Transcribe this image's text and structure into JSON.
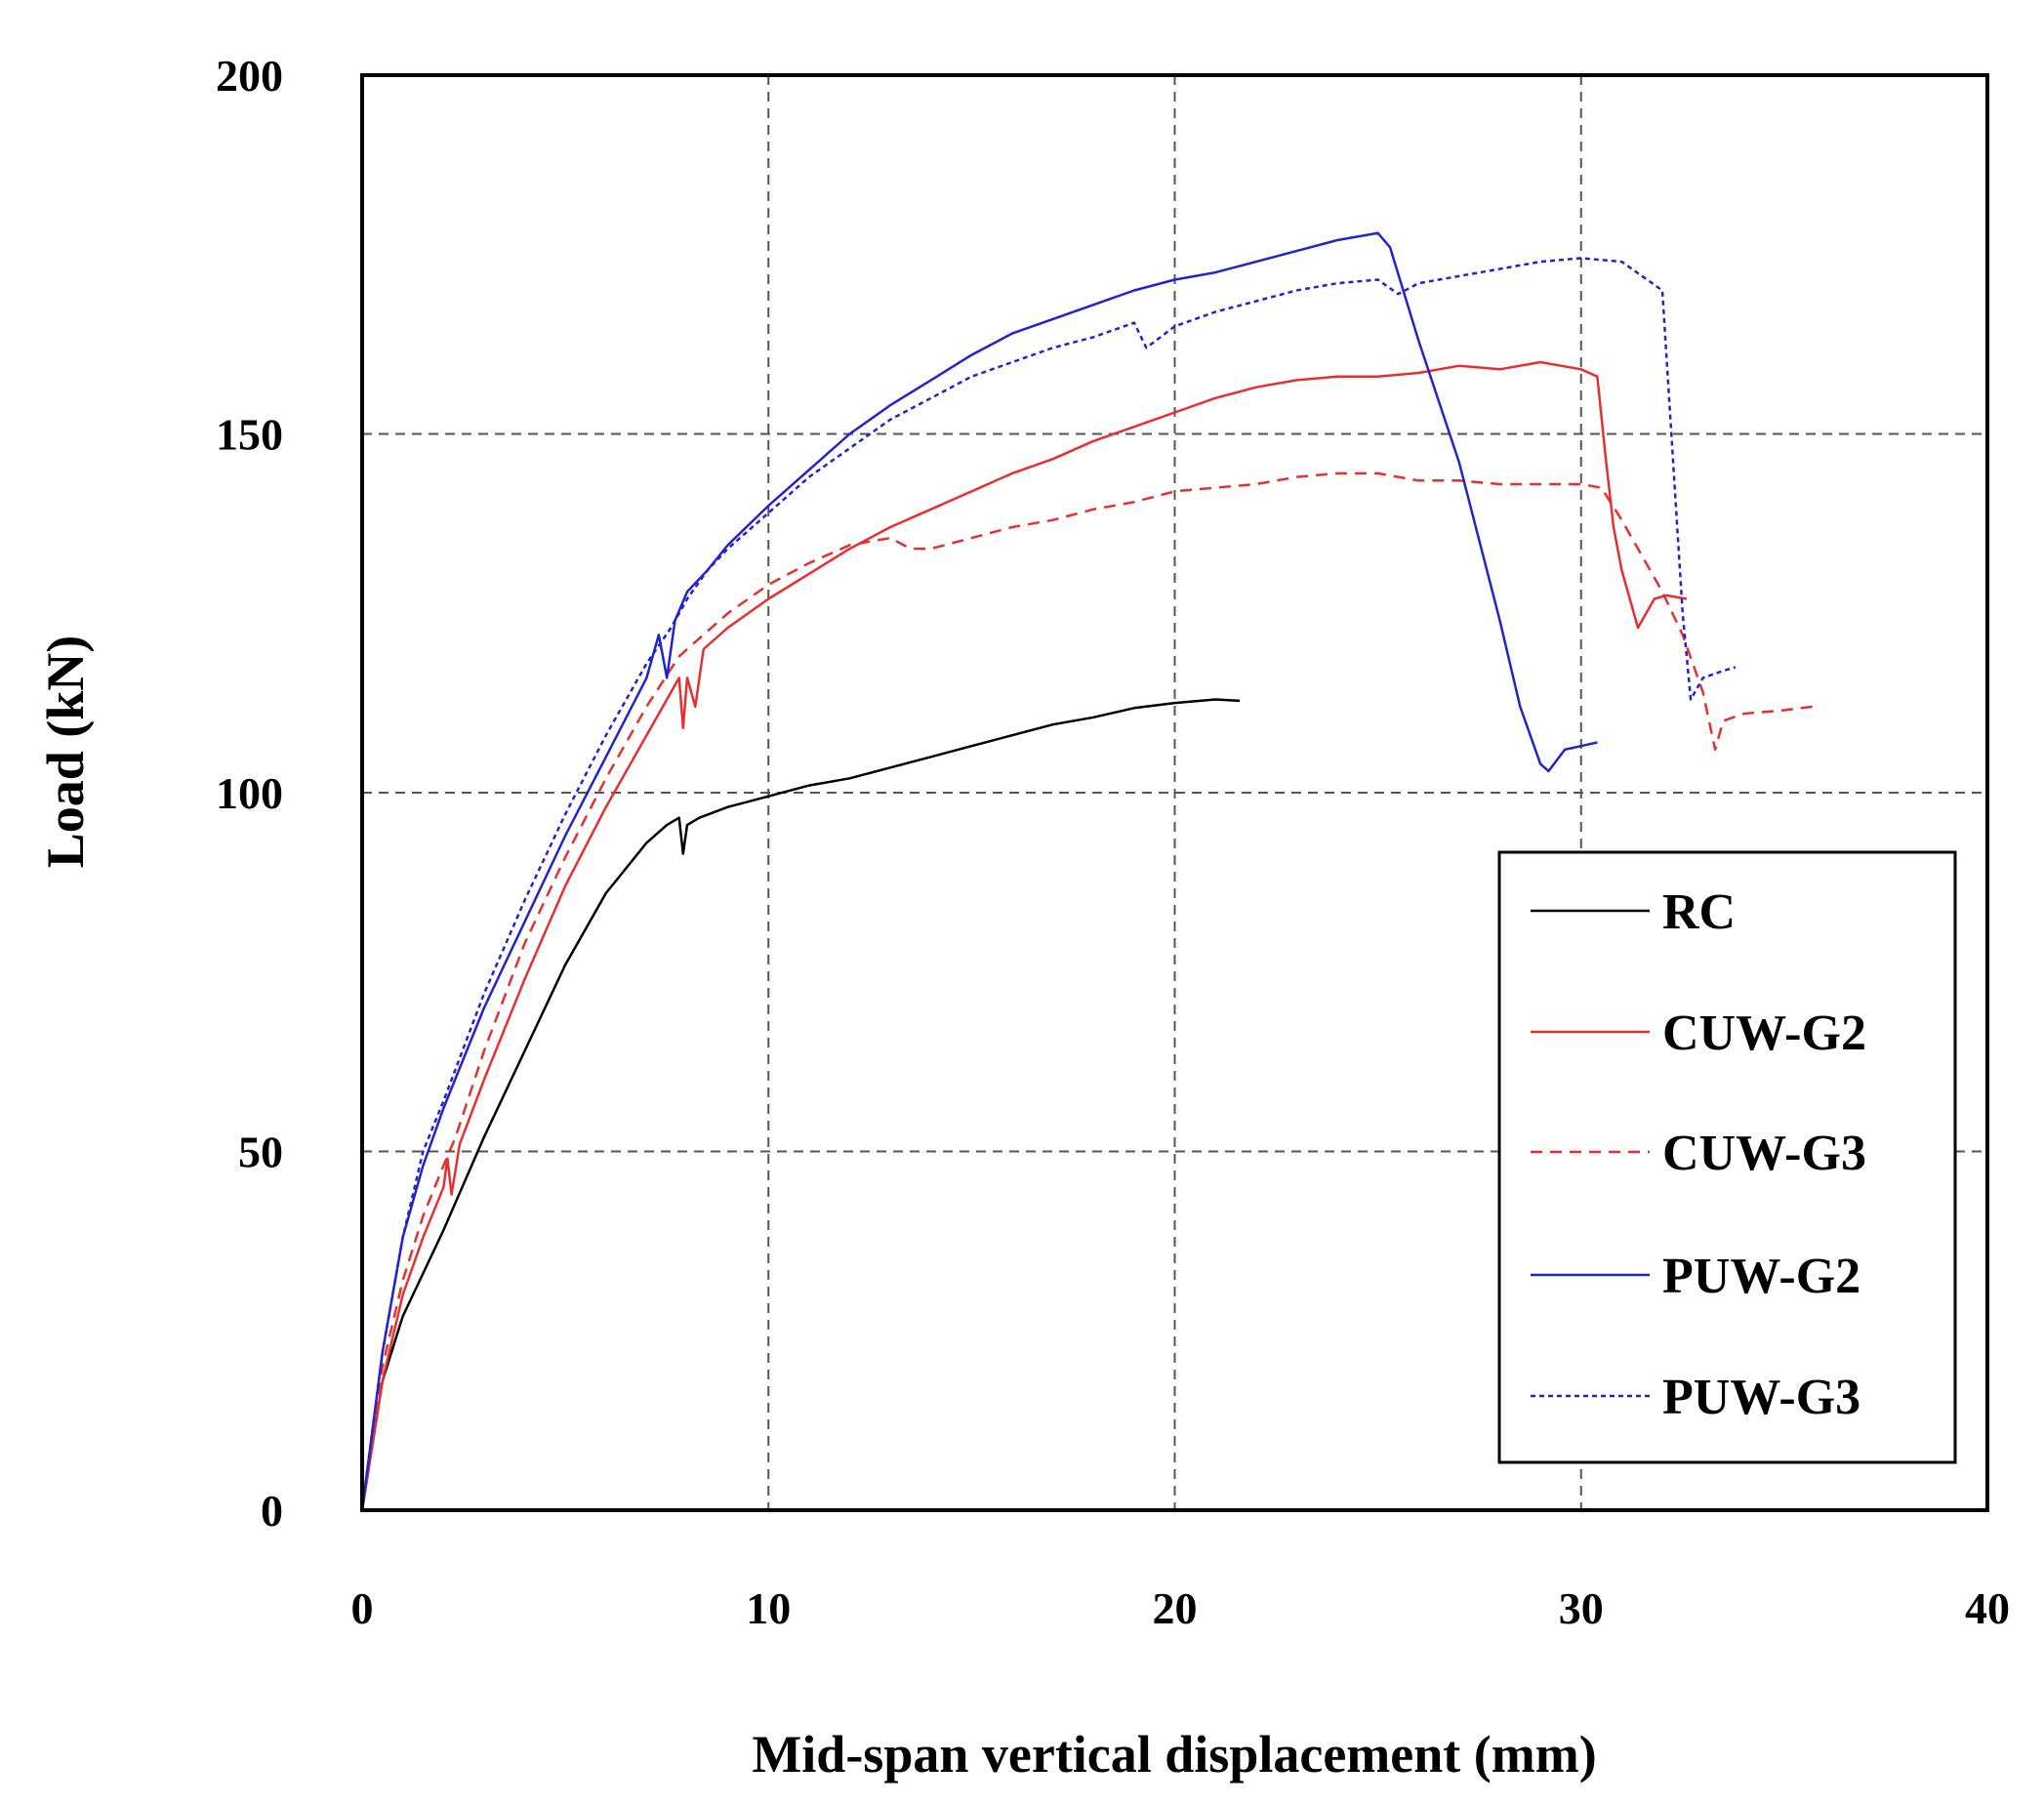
{
  "chart_data": {
    "type": "line",
    "title": "",
    "xlabel": "Mid-span vertical displacement (mm)",
    "ylabel": "Load (kN)",
    "xlim": [
      0,
      40
    ],
    "ylim": [
      0,
      200
    ],
    "xticks": [
      0,
      10,
      20,
      30,
      40
    ],
    "yticks": [
      0,
      50,
      100,
      150,
      200
    ],
    "grid": true,
    "legend_position": "bottom-right",
    "series": [
      {
        "name": "RC",
        "color": "#000000",
        "dash": "solid",
        "points": [
          [
            0,
            0
          ],
          [
            0.5,
            18
          ],
          [
            1.0,
            27
          ],
          [
            1.5,
            33
          ],
          [
            2.0,
            39
          ],
          [
            3,
            52
          ],
          [
            4,
            64
          ],
          [
            5,
            76
          ],
          [
            6,
            86
          ],
          [
            7,
            93
          ],
          [
            7.5,
            95.5
          ],
          [
            7.8,
            96.5
          ],
          [
            7.9,
            91.5
          ],
          [
            8.0,
            95.5
          ],
          [
            8.3,
            96.5
          ],
          [
            9,
            98
          ],
          [
            10,
            99.5
          ],
          [
            11,
            101
          ],
          [
            12,
            102
          ],
          [
            13,
            103.5
          ],
          [
            14,
            105
          ],
          [
            15,
            106.5
          ],
          [
            16,
            108
          ],
          [
            17,
            109.5
          ],
          [
            18,
            110.5
          ],
          [
            19,
            111.8
          ],
          [
            20,
            112.5
          ],
          [
            21,
            113
          ],
          [
            21.6,
            112.8
          ]
        ]
      },
      {
        "name": "CUW-G2",
        "color": "#e53030",
        "dash": "solid",
        "points": [
          [
            0,
            0
          ],
          [
            0.5,
            18
          ],
          [
            1.0,
            30
          ],
          [
            1.5,
            38
          ],
          [
            2.0,
            45
          ],
          [
            2.1,
            49
          ],
          [
            2.2,
            44
          ],
          [
            2.4,
            51
          ],
          [
            3,
            60
          ],
          [
            4,
            74
          ],
          [
            5,
            87
          ],
          [
            6,
            98
          ],
          [
            7,
            108
          ],
          [
            7.5,
            113
          ],
          [
            7.8,
            116
          ],
          [
            7.9,
            109
          ],
          [
            8.0,
            116
          ],
          [
            8.2,
            112
          ],
          [
            8.4,
            120
          ],
          [
            9,
            123
          ],
          [
            10,
            127
          ],
          [
            11,
            130.5
          ],
          [
            12,
            134
          ],
          [
            13,
            137
          ],
          [
            14,
            139.5
          ],
          [
            15,
            142
          ],
          [
            16,
            144.5
          ],
          [
            17,
            146.5
          ],
          [
            18,
            149
          ],
          [
            19,
            151
          ],
          [
            20,
            153
          ],
          [
            21,
            155
          ],
          [
            22,
            156.5
          ],
          [
            23,
            157.5
          ],
          [
            24,
            158
          ],
          [
            25,
            158
          ],
          [
            26,
            158.5
          ],
          [
            27,
            159.5
          ],
          [
            28,
            159
          ],
          [
            29,
            160
          ],
          [
            30,
            159
          ],
          [
            30.4,
            158
          ],
          [
            30.6,
            147
          ],
          [
            30.8,
            137
          ],
          [
            31.0,
            131
          ],
          [
            31.2,
            127
          ],
          [
            31.4,
            123
          ],
          [
            31.6,
            125
          ],
          [
            31.8,
            127
          ],
          [
            32.1,
            127.5
          ],
          [
            32.6,
            127
          ]
        ]
      },
      {
        "name": "CUW-G3",
        "color": "#e53030",
        "dash": "dashed",
        "points": [
          [
            0,
            0
          ],
          [
            0.5,
            20
          ],
          [
            1.0,
            32
          ],
          [
            1.5,
            41
          ],
          [
            2.0,
            48
          ],
          [
            2.3,
            52
          ],
          [
            3,
            64
          ],
          [
            4,
            79
          ],
          [
            5,
            91
          ],
          [
            6,
            102
          ],
          [
            7,
            112
          ],
          [
            7.8,
            119
          ],
          [
            8.2,
            121
          ],
          [
            9,
            125
          ],
          [
            10,
            129
          ],
          [
            11,
            132
          ],
          [
            12,
            134.5
          ],
          [
            13,
            135.5
          ],
          [
            13.5,
            134
          ],
          [
            14,
            134
          ],
          [
            15,
            135.5
          ],
          [
            16,
            137
          ],
          [
            17,
            138
          ],
          [
            18,
            139.5
          ],
          [
            19,
            140.5
          ],
          [
            20,
            142
          ],
          [
            21,
            142.5
          ],
          [
            22,
            143
          ],
          [
            23,
            144
          ],
          [
            24,
            144.5
          ],
          [
            25,
            144.5
          ],
          [
            26,
            143.5
          ],
          [
            27,
            143.5
          ],
          [
            28,
            143
          ],
          [
            29,
            143
          ],
          [
            30,
            143
          ],
          [
            30.5,
            142.5
          ],
          [
            31,
            138
          ],
          [
            32,
            128
          ],
          [
            32.5,
            122
          ],
          [
            33,
            114
          ],
          [
            33.3,
            106
          ],
          [
            33.5,
            110
          ],
          [
            34,
            111
          ],
          [
            35,
            111.5
          ],
          [
            35.7,
            112
          ]
        ]
      },
      {
        "name": "PUW-G2",
        "color": "#2323cc",
        "dash": "solid",
        "points": [
          [
            0,
            0
          ],
          [
            0.5,
            22
          ],
          [
            1.0,
            38
          ],
          [
            1.5,
            48
          ],
          [
            2.0,
            56
          ],
          [
            3,
            70
          ],
          [
            4,
            82
          ],
          [
            5,
            94
          ],
          [
            6,
            105
          ],
          [
            7,
            116
          ],
          [
            7.3,
            122
          ],
          [
            7.5,
            116
          ],
          [
            7.7,
            124
          ],
          [
            8,
            128
          ],
          [
            8.5,
            131
          ],
          [
            9,
            134.5
          ],
          [
            10,
            140
          ],
          [
            11,
            145
          ],
          [
            12,
            150
          ],
          [
            13,
            154
          ],
          [
            14,
            157.5
          ],
          [
            15,
            161
          ],
          [
            16,
            164
          ],
          [
            17,
            166
          ],
          [
            18,
            168
          ],
          [
            19,
            170
          ],
          [
            20,
            171.5
          ],
          [
            21,
            172.5
          ],
          [
            22,
            174
          ],
          [
            23,
            175.5
          ],
          [
            24,
            177
          ],
          [
            24.5,
            177.5
          ],
          [
            25,
            178
          ],
          [
            25.3,
            176
          ],
          [
            26,
            163
          ],
          [
            27,
            146
          ],
          [
            28,
            124
          ],
          [
            28.5,
            112
          ],
          [
            29,
            104
          ],
          [
            29.2,
            103
          ],
          [
            29.6,
            106
          ],
          [
            30,
            106.5
          ],
          [
            30.4,
            107
          ]
        ]
      },
      {
        "name": "PUW-G3",
        "color": "#2323cc",
        "dash": "dotted",
        "points": [
          [
            0,
            0
          ],
          [
            0.5,
            22
          ],
          [
            1.0,
            38
          ],
          [
            1.5,
            50
          ],
          [
            2.0,
            57
          ],
          [
            3,
            72
          ],
          [
            4,
            85
          ],
          [
            5,
            97
          ],
          [
            6,
            108
          ],
          [
            7,
            118
          ],
          [
            7.6,
            123
          ],
          [
            7.8,
            125
          ],
          [
            8,
            127
          ],
          [
            8.5,
            131
          ],
          [
            9,
            134
          ],
          [
            10,
            139
          ],
          [
            11,
            144
          ],
          [
            12,
            148
          ],
          [
            13,
            152
          ],
          [
            14,
            155
          ],
          [
            15,
            158
          ],
          [
            16,
            160
          ],
          [
            17,
            162
          ],
          [
            18,
            163.5
          ],
          [
            19,
            165.5
          ],
          [
            19.3,
            162
          ],
          [
            20,
            165
          ],
          [
            21,
            167
          ],
          [
            22,
            168.5
          ],
          [
            23,
            170
          ],
          [
            24,
            171
          ],
          [
            25,
            171.5
          ],
          [
            25.5,
            169.5
          ],
          [
            26,
            171
          ],
          [
            27,
            172
          ],
          [
            28,
            173
          ],
          [
            29,
            174
          ],
          [
            30,
            174.5
          ],
          [
            31,
            174
          ],
          [
            31.5,
            172
          ],
          [
            32,
            170
          ],
          [
            32.3,
            143
          ],
          [
            32.5,
            125
          ],
          [
            32.7,
            113
          ],
          [
            33,
            116
          ],
          [
            33.5,
            117
          ],
          [
            33.8,
            117.5
          ]
        ]
      }
    ]
  }
}
